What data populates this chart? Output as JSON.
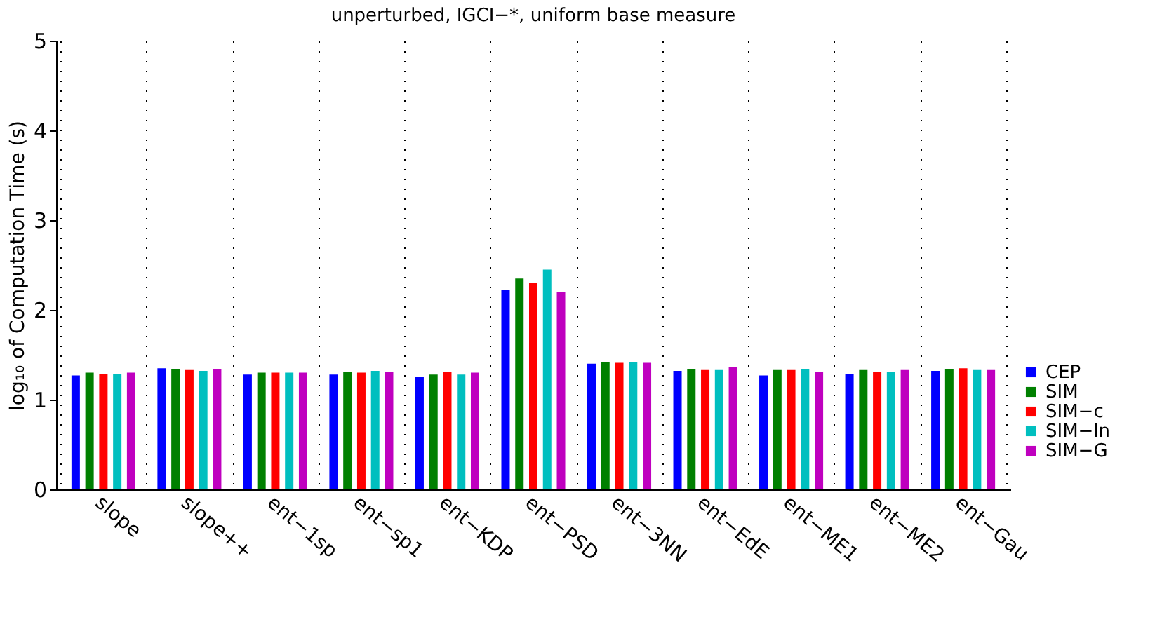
{
  "chart_data": {
    "type": "bar",
    "title": "unperturbed, IGCI−*, uniform base measure",
    "ylabel": "log₁₀ of Computation Time (s)",
    "categories": [
      "slope",
      "slope++",
      "ent−1sp",
      "ent−sp1",
      "ent−KDP",
      "ent−PSD",
      "ent−3NN",
      "ent−EdE",
      "ent−ME1",
      "ent−ME2",
      "ent−Gau"
    ],
    "series": [
      {
        "name": "CEP",
        "color": "#0000ff",
        "values": [
          1.27,
          1.35,
          1.28,
          1.28,
          1.25,
          2.22,
          1.4,
          1.32,
          1.27,
          1.29,
          1.32
        ]
      },
      {
        "name": "SIM",
        "color": "#008000",
        "values": [
          1.3,
          1.34,
          1.3,
          1.31,
          1.28,
          2.35,
          1.42,
          1.34,
          1.33,
          1.33,
          1.34
        ]
      },
      {
        "name": "SIM−c",
        "color": "#ff0000",
        "values": [
          1.29,
          1.33,
          1.3,
          1.3,
          1.31,
          2.3,
          1.41,
          1.33,
          1.33,
          1.31,
          1.35
        ]
      },
      {
        "name": "SIM−ln",
        "color": "#00bfbf",
        "values": [
          1.29,
          1.32,
          1.3,
          1.32,
          1.28,
          2.45,
          1.42,
          1.33,
          1.34,
          1.31,
          1.33
        ]
      },
      {
        "name": "SIM−G",
        "color": "#bf00bf",
        "values": [
          1.3,
          1.34,
          1.3,
          1.31,
          1.3,
          2.2,
          1.41,
          1.36,
          1.31,
          1.33,
          1.33
        ]
      }
    ],
    "ylim": [
      0,
      5
    ],
    "yticks": [
      0,
      1,
      2,
      3,
      4,
      5
    ],
    "grid": "x",
    "legend": "bottom right"
  }
}
